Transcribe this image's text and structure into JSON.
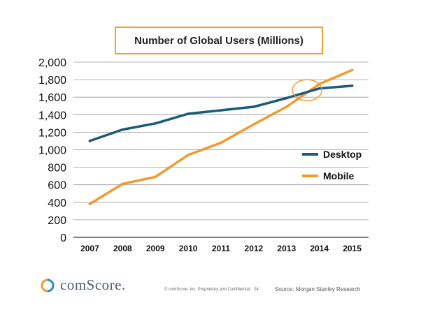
{
  "chart_data": {
    "type": "line",
    "title": "Number of Global Users (Millions)",
    "x": [
      "2007",
      "2008",
      "2009",
      "2010",
      "2011",
      "2012",
      "2013",
      "2014",
      "2015"
    ],
    "series": [
      {
        "name": "Desktop",
        "color": "#1b5a78",
        "values": [
          1100,
          1230,
          1300,
          1410,
          1450,
          1490,
          1590,
          1700,
          1730
        ]
      },
      {
        "name": "Mobile",
        "color": "#f29a2e",
        "values": [
          380,
          610,
          690,
          940,
          1080,
          1290,
          1490,
          1750,
          1910
        ]
      }
    ],
    "ylim": [
      0,
      2000
    ],
    "yticks": [
      "0",
      "200",
      "400",
      "600",
      "800",
      "1,000",
      "1,200",
      "1,400",
      "1,600",
      "1,800",
      "2,000"
    ],
    "grid": true,
    "legend_position": "right",
    "annotation": "circle at Mobile/Desktop crossover (2013–2014)"
  },
  "footer": {
    "brand": "comScore.",
    "note": "© comScore, Inc. Proprietary and Confidential.",
    "page_number": "24",
    "source": "Source: Morgan Stanley Research"
  }
}
